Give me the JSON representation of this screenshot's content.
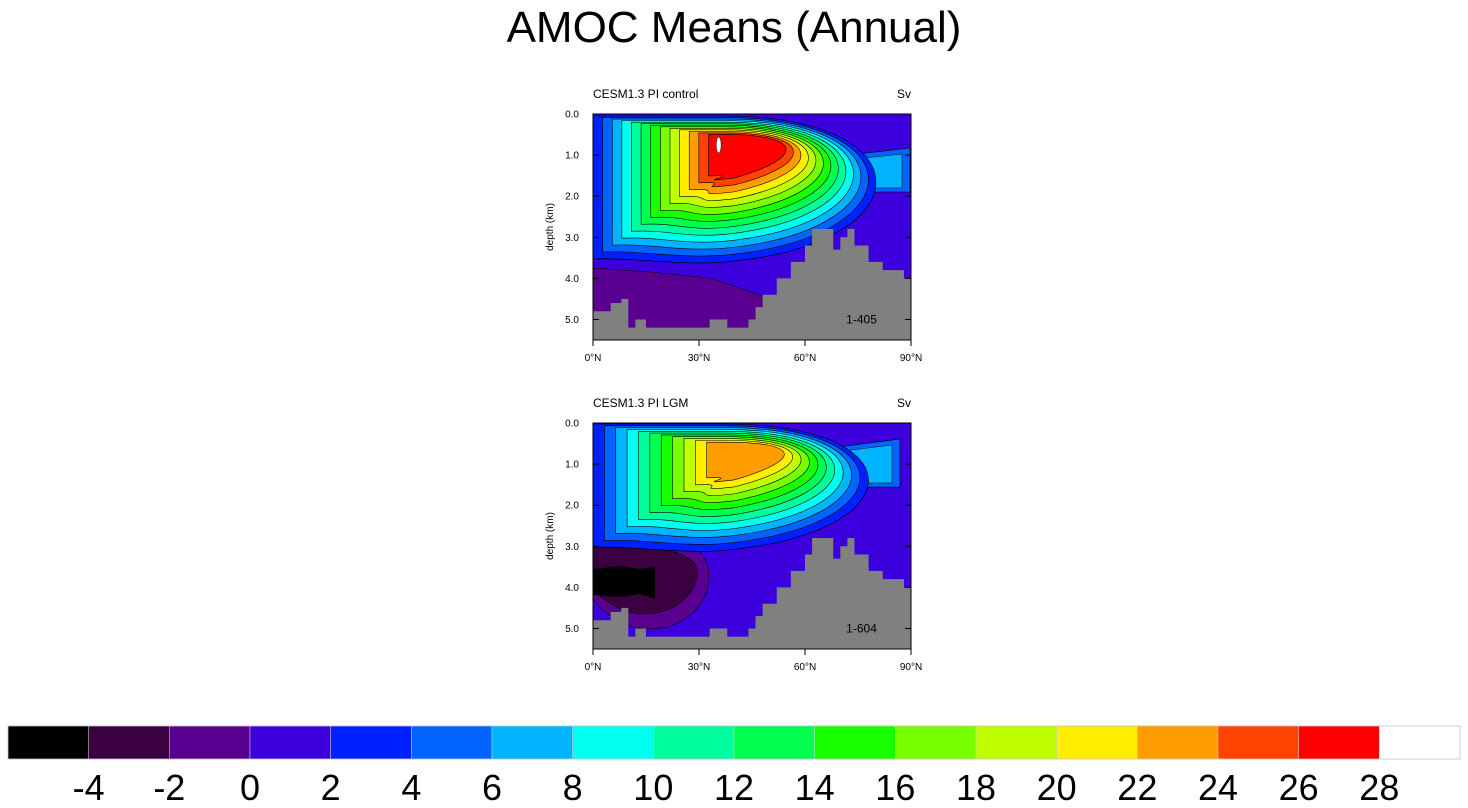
{
  "title": "AMOC Means (Annual)",
  "colors": {
    "levels": [
      "#000000",
      "#3a0040",
      "#5a0090",
      "#3c00dc",
      "#0020ff",
      "#0064ff",
      "#00b4ff",
      "#00ffee",
      "#00ff9c",
      "#00ff50",
      "#18ff00",
      "#78ff00",
      "#c0ff00",
      "#ffee00",
      "#ff9c00",
      "#ff4400",
      "#ff0000",
      "#ffffff"
    ],
    "land": "#808080"
  },
  "chart_data": [
    {
      "type": "heatmap",
      "title": "CESM1.3 PI control",
      "units_label": "Sv",
      "ylabel": "depth (km)",
      "xlabel": "",
      "x_ticks": [
        "0°N",
        "30°N",
        "60°N",
        "90°N"
      ],
      "y_ticks": [
        "0.0",
        "1.0",
        "2.0",
        "3.0",
        "4.0",
        "5.0"
      ],
      "xlim": [
        0,
        90
      ],
      "ylim": [
        5.5,
        0
      ],
      "annotation": "1-405",
      "max_overturning_sv": 28,
      "max_location": {
        "lat_deg": 35,
        "depth_km": 0.9
      }
    },
    {
      "type": "heatmap",
      "title": "CESM1.3 PI LGM",
      "units_label": "Sv",
      "ylabel": "depth (km)",
      "xlabel": "",
      "x_ticks": [
        "0°N",
        "30°N",
        "60°N",
        "90°N"
      ],
      "y_ticks": [
        "0.0",
        "1.0",
        "2.0",
        "3.0",
        "4.0",
        "5.0"
      ],
      "xlim": [
        0,
        90
      ],
      "ylim": [
        5.5,
        0
      ],
      "annotation": "1-604",
      "max_overturning_sv": 24,
      "max_location": {
        "lat_deg": 35,
        "depth_km": 0.8
      }
    }
  ],
  "colorbar": {
    "labels": [
      "-4",
      "-2",
      "0",
      "2",
      "4",
      "6",
      "8",
      "10",
      "12",
      "14",
      "16",
      "18",
      "20",
      "22",
      "24",
      "26",
      "28"
    ]
  }
}
